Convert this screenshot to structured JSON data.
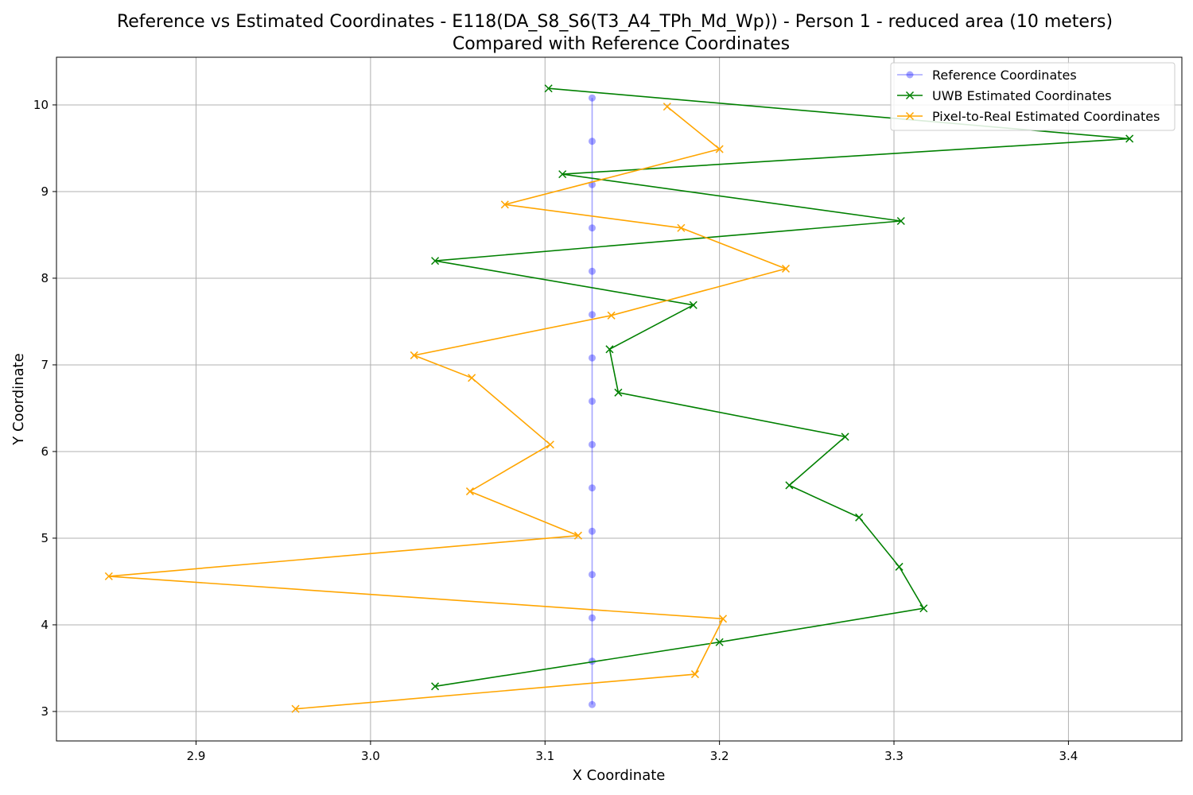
{
  "chart_data": {
    "type": "line",
    "title": "Reference vs Estimated Coordinates - E118(DA_S8_S6(T3_A4_TPh_Md_Wp)) - Person 1 - reduced area (10 meters)",
    "subtitle": "Compared with Reference Coordinates",
    "xlabel": "X Coordinate",
    "ylabel": "Y Coordinate",
    "xlim": [
      2.82,
      3.465
    ],
    "ylim": [
      2.66,
      10.55
    ],
    "xticks": [
      "2.9",
      "3.0",
      "3.1",
      "3.2",
      "3.3",
      "3.4"
    ],
    "yticks": [
      "3",
      "4",
      "5",
      "6",
      "7",
      "8",
      "9",
      "10"
    ],
    "grid": true,
    "legend_position": "top-right",
    "series": [
      {
        "name": "Reference Coordinates",
        "color": "#0000ff",
        "marker": "circle",
        "points": [
          [
            3.127,
            10.08
          ],
          [
            3.127,
            9.58
          ],
          [
            3.127,
            9.08
          ],
          [
            3.127,
            8.58
          ],
          [
            3.127,
            8.08
          ],
          [
            3.127,
            7.58
          ],
          [
            3.127,
            7.08
          ],
          [
            3.127,
            6.58
          ],
          [
            3.127,
            6.08
          ],
          [
            3.127,
            5.58
          ],
          [
            3.127,
            5.08
          ],
          [
            3.127,
            4.58
          ],
          [
            3.127,
            4.08
          ],
          [
            3.127,
            3.58
          ],
          [
            3.127,
            3.08
          ]
        ]
      },
      {
        "name": "UWB Estimated Coordinates",
        "color": "#008000",
        "marker": "x",
        "points": [
          [
            3.102,
            10.19
          ],
          [
            3.435,
            9.61
          ],
          [
            3.11,
            9.2
          ],
          [
            3.304,
            8.66
          ],
          [
            3.037,
            8.2
          ],
          [
            3.185,
            7.69
          ],
          [
            3.137,
            7.18
          ],
          [
            3.142,
            6.68
          ],
          [
            3.272,
            6.17
          ],
          [
            3.24,
            5.61
          ],
          [
            3.28,
            5.24
          ],
          [
            3.303,
            4.67
          ],
          [
            3.317,
            4.19
          ],
          [
            3.2,
            3.8
          ],
          [
            3.037,
            3.29
          ]
        ]
      },
      {
        "name": "Pixel-to-Real Estimated Coordinates",
        "color": "#ffa500",
        "marker": "x",
        "points": [
          [
            3.17,
            9.98
          ],
          [
            3.2,
            9.49
          ],
          [
            3.077,
            8.85
          ],
          [
            3.178,
            8.58
          ],
          [
            3.238,
            8.11
          ],
          [
            3.138,
            7.57
          ],
          [
            3.025,
            7.11
          ],
          [
            3.058,
            6.85
          ],
          [
            3.103,
            6.08
          ],
          [
            3.057,
            5.54
          ],
          [
            3.119,
            5.03
          ],
          [
            2.85,
            4.56
          ],
          [
            3.202,
            4.07
          ],
          [
            3.186,
            3.43
          ],
          [
            2.957,
            3.03
          ]
        ]
      }
    ]
  }
}
